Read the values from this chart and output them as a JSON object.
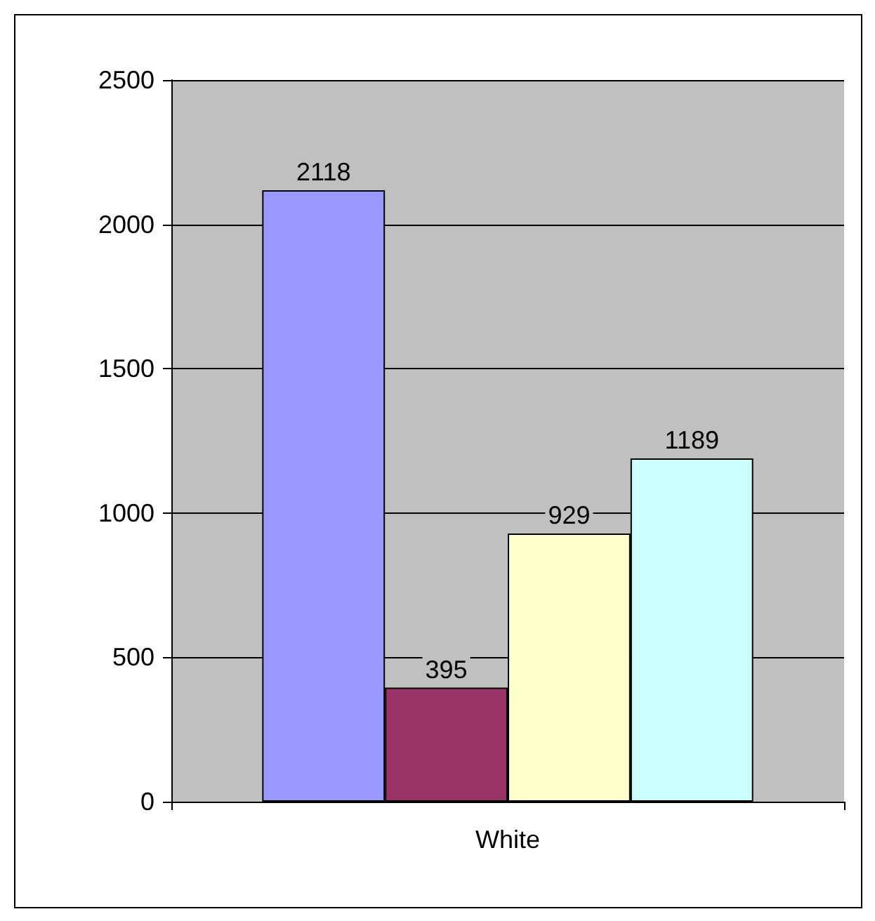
{
  "chart_data": {
    "type": "bar",
    "categories": [
      "White"
    ],
    "series": [
      {
        "color": "#9999ff",
        "values": [
          2118
        ]
      },
      {
        "color": "#993366",
        "values": [
          395
        ]
      },
      {
        "color": "#ffffcc",
        "values": [
          929
        ]
      },
      {
        "color": "#ccffff",
        "values": [
          1189
        ]
      }
    ],
    "ylim": [
      0,
      2500
    ],
    "yticks": [
      0,
      500,
      1000,
      1500,
      2000,
      2500
    ],
    "grid": "y",
    "data_labels": true
  }
}
